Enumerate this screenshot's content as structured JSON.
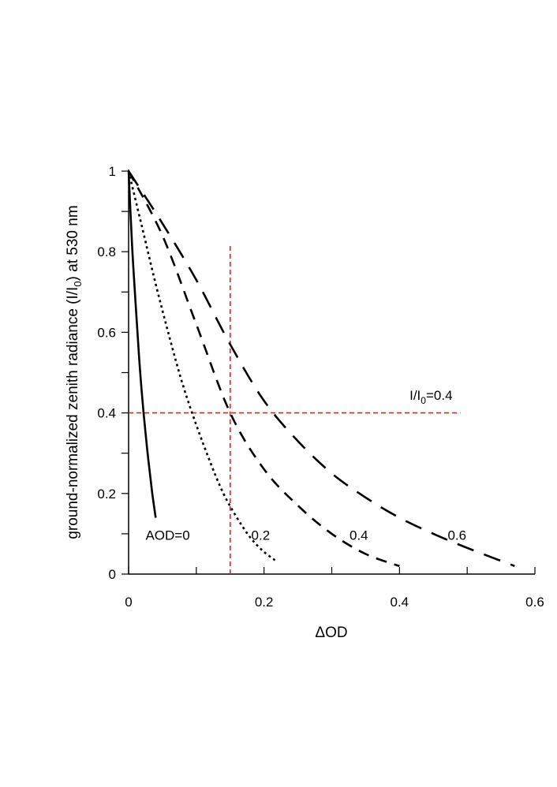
{
  "chart_data": {
    "type": "line",
    "title": "",
    "xlabel": "ΔOD",
    "ylabel": {
      "pre": "ground-normalized zenith radiance (I/I",
      "sub": "0",
      "post": ") at 530 nm"
    },
    "xlim": [
      0,
      0.6
    ],
    "ylim": [
      0,
      1
    ],
    "xticks": [
      0,
      0.2,
      0.4,
      0.6
    ],
    "xtick_labels": [
      "0",
      "0.2",
      "0.4",
      "0.6"
    ],
    "yticks": [
      0,
      0.2,
      0.4,
      0.6,
      0.8,
      1
    ],
    "ytick_labels": [
      "0",
      "0.2",
      "0.4",
      "0.6",
      "0.8",
      "1"
    ],
    "x_minor_step": 0.1,
    "y_minor_step": 0.1,
    "grid": false,
    "series": [
      {
        "name": "AOD=0",
        "label": "AOD=0",
        "style": "solid",
        "x": [
          0,
          0.005,
          0.01,
          0.015,
          0.02,
          0.025,
          0.03,
          0.035,
          0.04
        ],
        "y": [
          1.0,
          0.82,
          0.68,
          0.55,
          0.44,
          0.35,
          0.27,
          0.2,
          0.14
        ]
      },
      {
        "name": "0.2",
        "label": "0.2",
        "style": "dotted",
        "x": [
          0,
          0.02,
          0.04,
          0.06,
          0.08,
          0.1,
          0.12,
          0.14,
          0.16,
          0.18,
          0.2,
          0.22
        ],
        "y": [
          1.0,
          0.86,
          0.72,
          0.59,
          0.47,
          0.37,
          0.28,
          0.2,
          0.14,
          0.09,
          0.055,
          0.03
        ]
      },
      {
        "name": "0.4",
        "label": "0.4",
        "style": "dashed",
        "x": [
          0,
          0.05,
          0.1,
          0.15,
          0.2,
          0.25,
          0.3,
          0.35,
          0.4
        ],
        "y": [
          1.0,
          0.84,
          0.62,
          0.4,
          0.26,
          0.17,
          0.1,
          0.05,
          0.02
        ]
      },
      {
        "name": "0.6",
        "label": "0.6",
        "style": "long-dashed",
        "x": [
          0,
          0.05,
          0.1,
          0.15,
          0.2,
          0.25,
          0.3,
          0.35,
          0.4,
          0.45,
          0.5,
          0.57
        ],
        "y": [
          1.0,
          0.87,
          0.73,
          0.57,
          0.43,
          0.33,
          0.25,
          0.19,
          0.14,
          0.1,
          0.065,
          0.02
        ]
      }
    ],
    "reference_lines": [
      {
        "orientation": "vertical",
        "value": 0.15,
        "from": 0,
        "to": 0.82,
        "color": "#e02020"
      },
      {
        "orientation": "horizontal",
        "value": 0.4,
        "from": 0,
        "to": 0.49,
        "color": "#e02020"
      }
    ],
    "annotations": [
      {
        "text_pre": "I/I",
        "text_sub": "0",
        "text_post": "=0.4",
        "x": 0.4,
        "y": 0.44
      },
      {
        "text": "AOD=0",
        "x": 0.025,
        "y": 0.085
      },
      {
        "text": "0.2",
        "x": 0.195,
        "y": 0.085
      },
      {
        "text": "0.4",
        "x": 0.34,
        "y": 0.085
      },
      {
        "text": "0.6",
        "x": 0.485,
        "y": 0.085
      }
    ]
  }
}
